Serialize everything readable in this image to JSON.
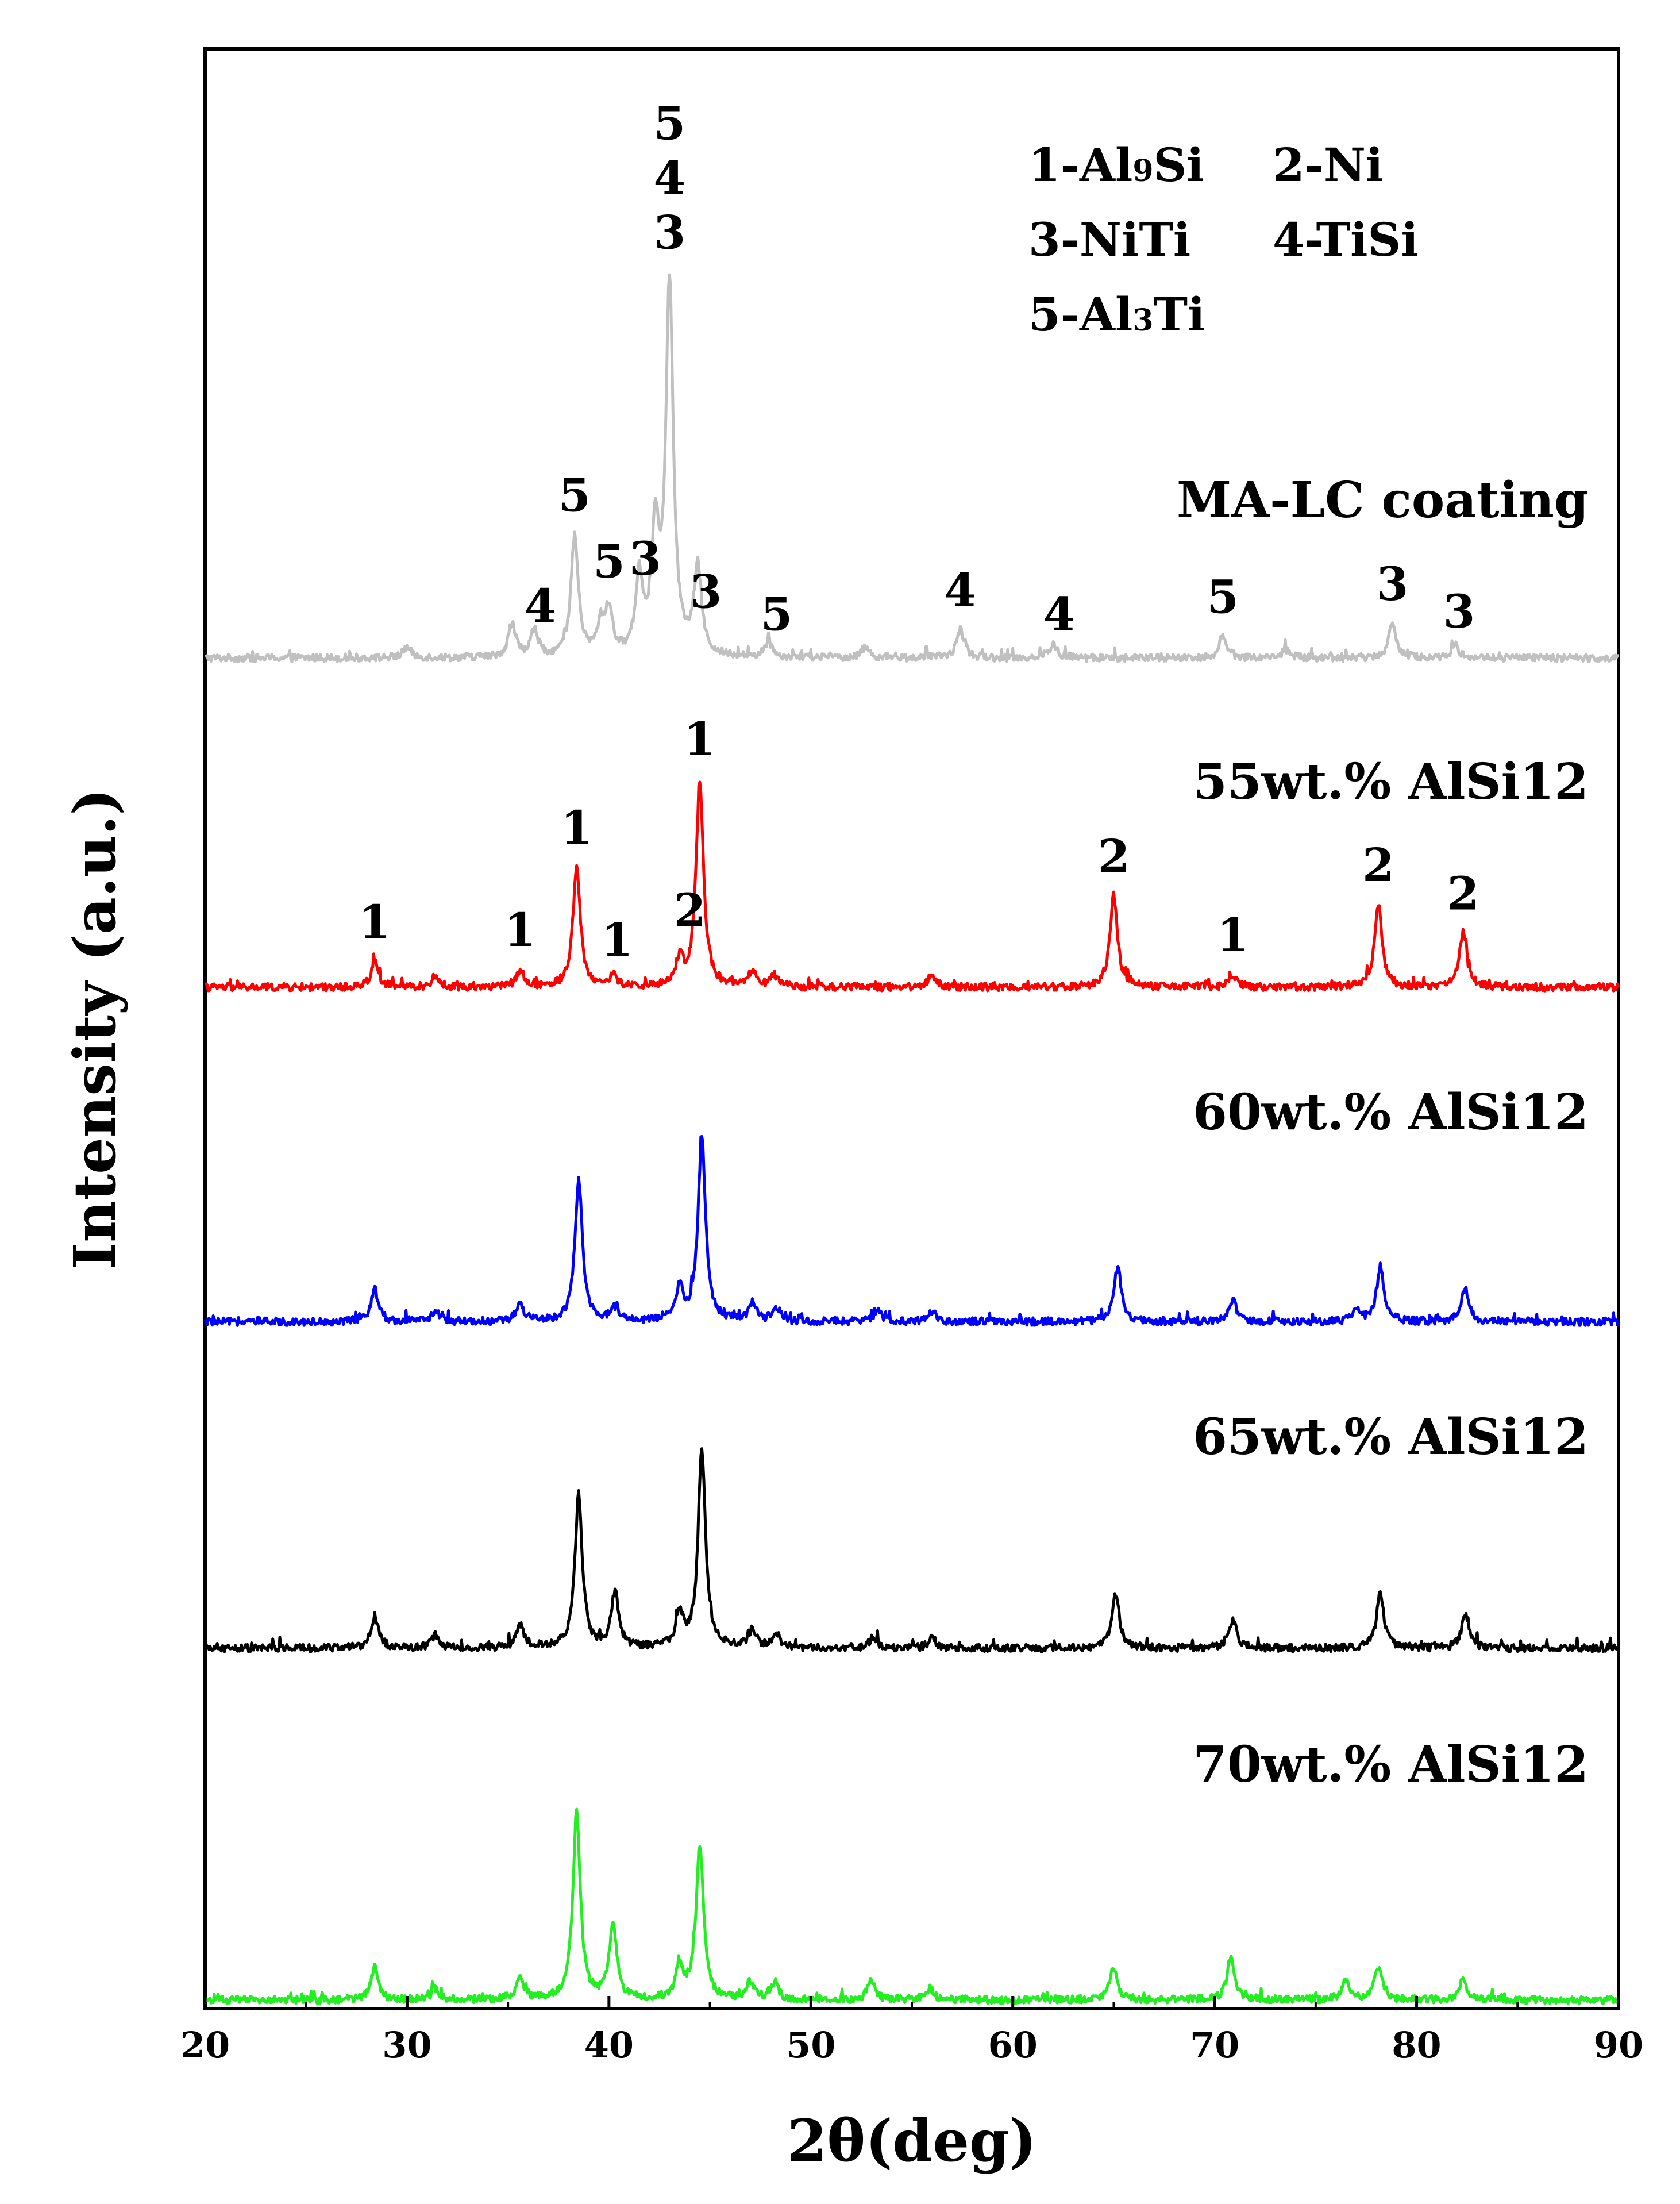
{
  "chart_data": {
    "type": "line",
    "xlabel": "2θ(deg)",
    "ylabel": "Intensity (a.u.)",
    "xlim": [
      20,
      90
    ],
    "xticks": [
      20,
      30,
      40,
      50,
      60,
      70,
      80,
      90
    ],
    "legend": [
      "1-Al9Si",
      "2-Ni",
      "3-NiTi",
      "4-TiSi",
      "5-Al3Ti"
    ],
    "legend_placement": "top-right",
    "grid": false,
    "series": [
      {
        "name": "MA-LC coating",
        "color": "#c0c0c0",
        "peaks": [
          [
            30.0,
            0.05
          ],
          [
            35.2,
            0.15
          ],
          [
            36.3,
            0.12
          ],
          [
            38.3,
            0.55
          ],
          [
            39.6,
            0.13
          ],
          [
            40.0,
            0.2
          ],
          [
            41.5,
            0.35
          ],
          [
            42.3,
            0.55
          ],
          [
            43.0,
            1.7
          ],
          [
            44.4,
            0.4
          ],
          [
            47.9,
            0.07
          ],
          [
            52.7,
            0.05
          ],
          [
            57.4,
            0.13
          ],
          [
            62.0,
            0.06
          ],
          [
            70.4,
            0.1
          ],
          [
            73.5,
            0.04
          ],
          [
            78.8,
            0.16
          ],
          [
            81.9,
            0.06
          ]
        ],
        "peak_labels": [
          {
            "x": 36.6,
            "text": "4"
          },
          {
            "x": 38.3,
            "text": "5"
          },
          {
            "x": 40.0,
            "text": "5"
          },
          {
            "x": 41.8,
            "text": "3"
          },
          {
            "x": 43.0,
            "text": "3"
          },
          {
            "x": 43.0,
            "text": "4"
          },
          {
            "x": 43.0,
            "text": "5"
          },
          {
            "x": 44.8,
            "text": "3"
          },
          {
            "x": 48.3,
            "text": "5"
          },
          {
            "x": 57.4,
            "text": "4"
          },
          {
            "x": 62.3,
            "text": "4"
          },
          {
            "x": 70.4,
            "text": "5"
          },
          {
            "x": 78.8,
            "text": "3"
          },
          {
            "x": 82.1,
            "text": "3"
          }
        ]
      },
      {
        "name": "55wt.% AlSi12",
        "color": "#ff0000",
        "peaks": [
          [
            28.4,
            0.12
          ],
          [
            31.4,
            0.05
          ],
          [
            35.6,
            0.08
          ],
          [
            38.4,
            0.55
          ],
          [
            40.2,
            0.05
          ],
          [
            43.5,
            0.12
          ],
          [
            44.5,
            0.95
          ],
          [
            47.1,
            0.07
          ],
          [
            48.2,
            0.05
          ],
          [
            56.0,
            0.06
          ],
          [
            65.0,
            0.42
          ],
          [
            70.9,
            0.06
          ],
          [
            78.1,
            0.38
          ],
          [
            82.3,
            0.25
          ]
        ],
        "peak_labels": [
          {
            "x": 28.4,
            "text": "1"
          },
          {
            "x": 35.6,
            "text": "1"
          },
          {
            "x": 38.4,
            "text": "1"
          },
          {
            "x": 40.4,
            "text": "1"
          },
          {
            "x": 44.0,
            "text": "2"
          },
          {
            "x": 44.5,
            "text": "1"
          },
          {
            "x": 65.0,
            "text": "2"
          },
          {
            "x": 70.9,
            "text": "1"
          },
          {
            "x": 78.1,
            "text": "2"
          },
          {
            "x": 82.3,
            "text": "2"
          }
        ]
      },
      {
        "name": "60wt.% AlSi12",
        "color": "#0000ff",
        "peaks": [
          [
            28.4,
            0.15
          ],
          [
            31.4,
            0.05
          ],
          [
            35.6,
            0.08
          ],
          [
            38.5,
            0.65
          ],
          [
            40.3,
            0.06
          ],
          [
            43.5,
            0.15
          ],
          [
            44.6,
            0.85
          ],
          [
            47.1,
            0.08
          ],
          [
            48.3,
            0.06
          ],
          [
            53.3,
            0.05
          ],
          [
            56.0,
            0.05
          ],
          [
            65.2,
            0.25
          ],
          [
            70.9,
            0.1
          ],
          [
            77.0,
            0.05
          ],
          [
            78.2,
            0.25
          ],
          [
            82.4,
            0.15
          ]
        ],
        "peak_labels": []
      },
      {
        "name": "65wt.% AlSi12",
        "color": "#000000",
        "peaks": [
          [
            28.4,
            0.15
          ],
          [
            31.4,
            0.06
          ],
          [
            35.6,
            0.1
          ],
          [
            38.5,
            0.7
          ],
          [
            40.3,
            0.25
          ],
          [
            43.5,
            0.15
          ],
          [
            44.6,
            0.9
          ],
          [
            47.1,
            0.08
          ],
          [
            48.3,
            0.06
          ],
          [
            53.1,
            0.05
          ],
          [
            56.0,
            0.05
          ],
          [
            65.1,
            0.25
          ],
          [
            70.9,
            0.13
          ],
          [
            78.2,
            0.25
          ],
          [
            82.4,
            0.15
          ]
        ],
        "peak_labels": []
      },
      {
        "name": "70wt.% AlSi12",
        "color": "#22ee22",
        "peaks": [
          [
            28.4,
            0.15
          ],
          [
            31.4,
            0.05
          ],
          [
            35.6,
            0.1
          ],
          [
            38.4,
            0.85
          ],
          [
            40.2,
            0.35
          ],
          [
            43.5,
            0.15
          ],
          [
            44.5,
            0.7
          ],
          [
            47.0,
            0.08
          ],
          [
            48.2,
            0.08
          ],
          [
            53.0,
            0.09
          ],
          [
            55.9,
            0.05
          ],
          [
            65.0,
            0.15
          ],
          [
            70.8,
            0.2
          ],
          [
            76.5,
            0.09
          ],
          [
            78.1,
            0.15
          ],
          [
            82.3,
            0.1
          ]
        ],
        "peak_labels": []
      }
    ]
  }
}
